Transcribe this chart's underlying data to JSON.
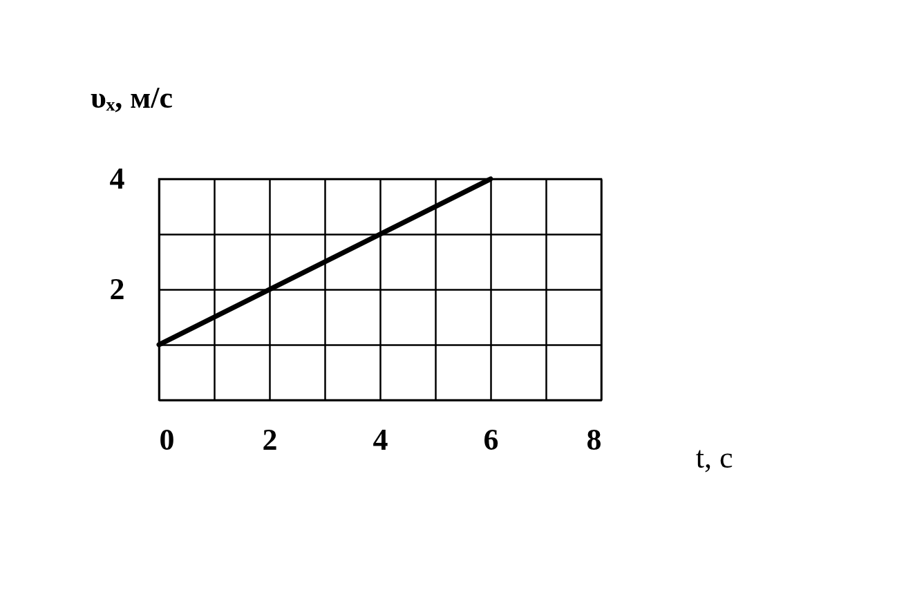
{
  "chart_data": {
    "type": "line",
    "xlabel": "t, с",
    "ylabel": "υₓ, м/с",
    "x": [
      0,
      6
    ],
    "series": [
      {
        "color": "#000000",
        "values": [
          1,
          4
        ]
      }
    ],
    "xlim": [
      0,
      8
    ],
    "ylim": [
      0,
      4
    ],
    "xticks": [
      0,
      {
        "value": 1,
        "label": null
      },
      2,
      {
        "value": 3,
        "label": null
      },
      4,
      {
        "value": 5,
        "label": null
      },
      6,
      {
        "value": 7,
        "label": null
      },
      8
    ],
    "yticks": [
      {
        "value": 0,
        "label": null
      },
      {
        "value": 1,
        "label": null
      },
      2,
      {
        "value": 3,
        "label": null
      },
      4
    ],
    "grid": true,
    "marker": "none",
    "line_style": "solid"
  }
}
